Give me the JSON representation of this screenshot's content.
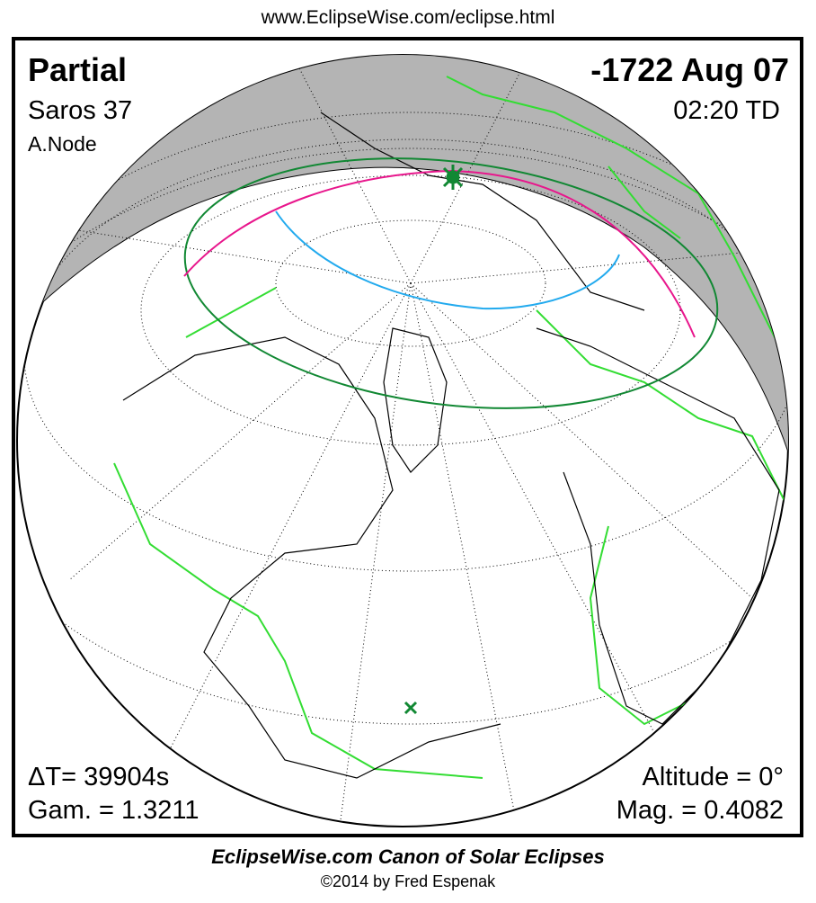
{
  "header_url": "www.EclipseWise.com/eclipse.html",
  "eclipse": {
    "type": "Partial",
    "date": "-1722 Aug 07",
    "saros": "Saros  37",
    "time": "02:20 TD",
    "node": "A.Node",
    "delta_t": "ΔT=  39904s",
    "gamma": "Gam. = 1.3211",
    "altitude": "Altitude =  0°",
    "magnitude": "Mag. = 0.4082"
  },
  "footer": {
    "title": "EclipseWise.com Canon of Solar Eclipses",
    "copyright": "©2014 by Fred Espenak"
  },
  "colors": {
    "night": "#b4b4b4",
    "coastline": "#000000",
    "borders": "#33dd33",
    "penumbra_limits": "#118833",
    "max_eclipse_curve": "#e8168c",
    "rise_set_curve": "#22aaee",
    "greatest_eclipse_marker": "#118833"
  }
}
